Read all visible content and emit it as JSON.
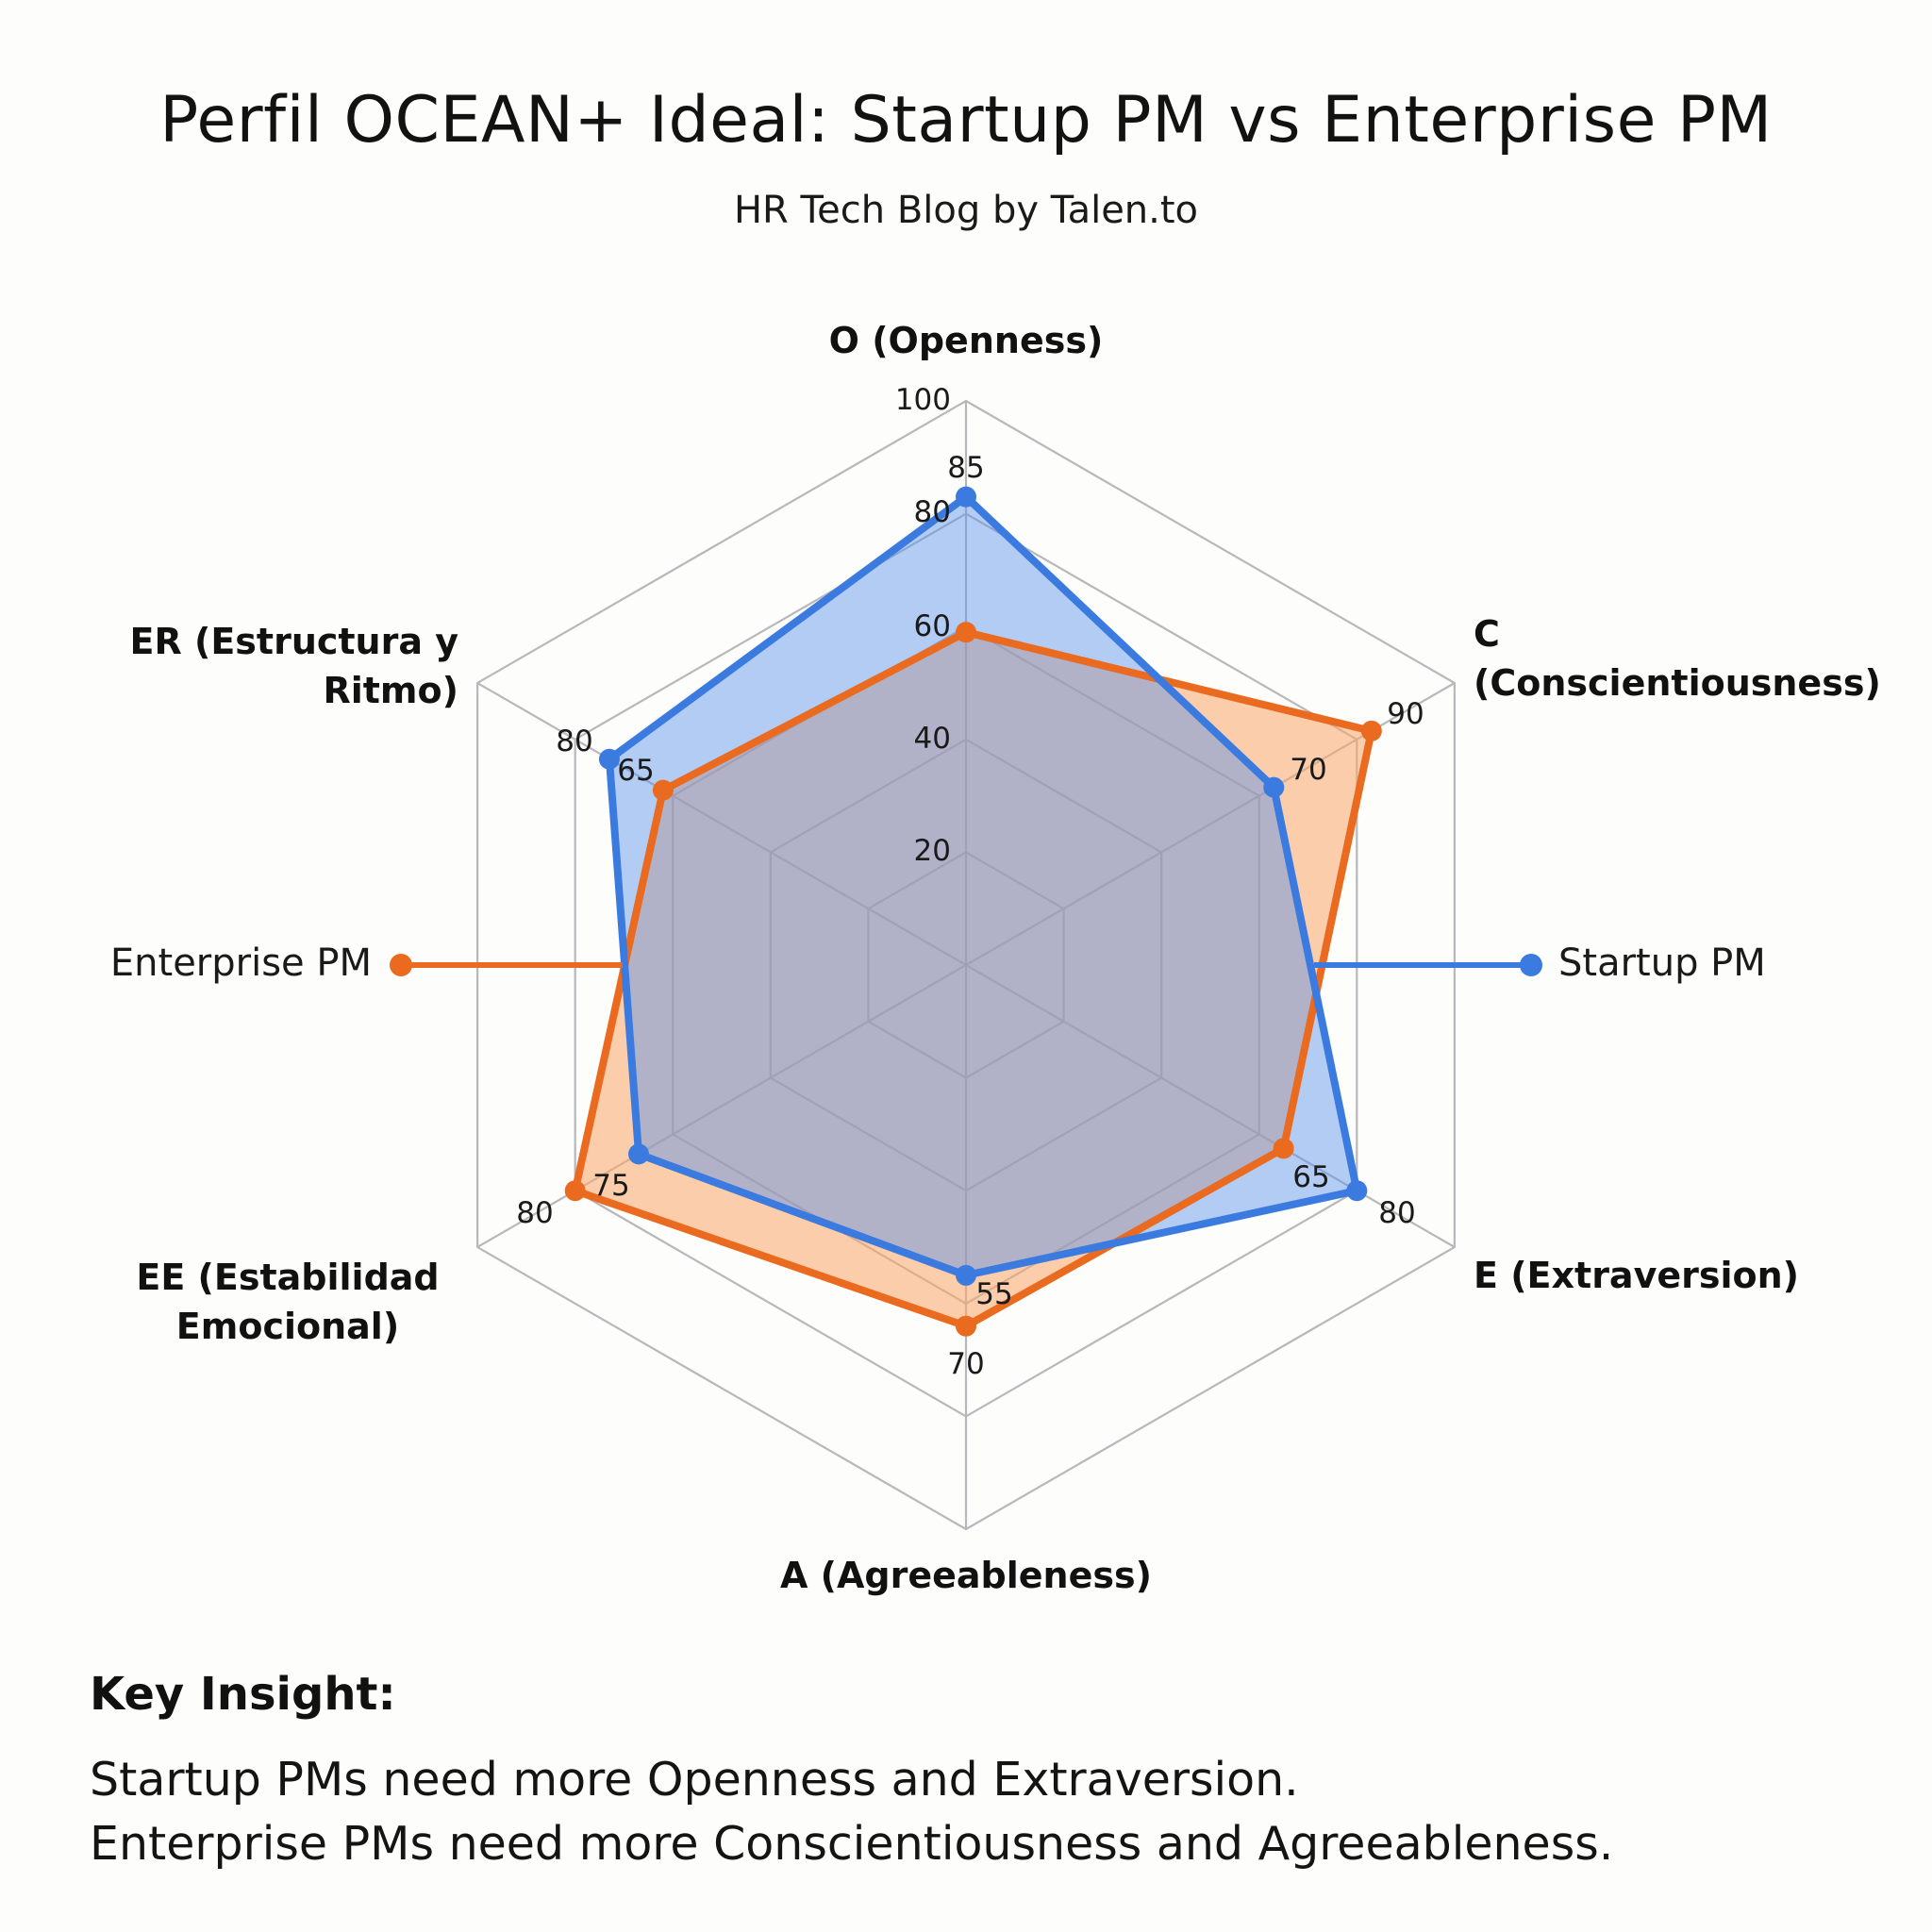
{
  "header": {
    "title": "Perfil OCEAN+ Ideal: Startup PM vs Enterprise PM",
    "subtitle": "HR Tech Blog by Talen.to"
  },
  "axes": [
    {
      "key": "O",
      "line1": "O (Openness)",
      "line2": ""
    },
    {
      "key": "C",
      "line1": "C",
      "line2": "(Conscientiousness)"
    },
    {
      "key": "E",
      "line1": "E (Extraversion)",
      "line2": ""
    },
    {
      "key": "A",
      "line1": "A (Agreeableness)",
      "line2": ""
    },
    {
      "key": "EE",
      "line1": "EE (Estabilidad",
      "line2": "Emocional)"
    },
    {
      "key": "ER",
      "line1": "ER (Estructura y",
      "line2": "Ritmo)"
    }
  ],
  "ticks": [
    "20",
    "40",
    "60",
    "80",
    "100"
  ],
  "legend": {
    "startup": "Startup PM",
    "enterprise": "Enterprise PM"
  },
  "colors": {
    "startup": "#3b7be0",
    "startup_fill": "rgba(86,145,235,0.45)",
    "enterprise": "#ea6a1f",
    "enterprise_fill": "rgba(250,165,105,0.55)",
    "grid": "#b8b8bc",
    "background": "#fdfdfb"
  },
  "insight": {
    "title": "Key Insight:",
    "line1": "Startup PMs need more Openness and Extraversion.",
    "line2": "Enterprise PMs need more Conscientiousness and Agreeableness."
  },
  "chart_data": {
    "type": "radar",
    "title": "Perfil OCEAN+ Ideal: Startup PM vs Enterprise PM",
    "subtitle": "HR Tech Blog by Talen.to",
    "categories": [
      "O (Openness)",
      "C (Conscientiousness)",
      "E (Extraversion)",
      "A (Agreeableness)",
      "EE (Estabilidad Emocional)",
      "ER (Estructura y Ritmo)"
    ],
    "series": [
      {
        "name": "Startup PM",
        "color": "#3b7be0",
        "values": [
          85,
          70,
          80,
          55,
          75,
          80
        ],
        "plot_values": [
          83,
          63,
          80,
          55,
          67,
          73
        ]
      },
      {
        "name": "Enterprise PM",
        "color": "#ea6a1f",
        "values": [
          60,
          90,
          65,
          70,
          80,
          65
        ],
        "plot_values": [
          59,
          83,
          65,
          64,
          80,
          62
        ]
      }
    ],
    "rlim": [
      0,
      100
    ],
    "ticks": [
      20,
      40,
      60,
      80,
      100
    ],
    "grid": true,
    "legend_position": "sides (Enterprise PM left, Startup PM right)"
  }
}
